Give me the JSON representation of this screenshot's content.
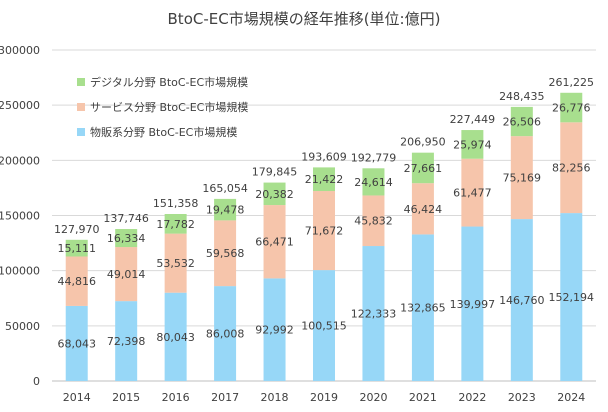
{
  "chart_data": {
    "type": "bar",
    "stacked": true,
    "title": "BtoC-EC市場規模の経年推移(単位:億円)",
    "xlabel": "",
    "ylabel": "",
    "categories": [
      "2014",
      "2015",
      "2016",
      "2017",
      "2018",
      "2019",
      "2020",
      "2021",
      "2022",
      "2023",
      "2024"
    ],
    "series": [
      {
        "name": "物販系分野 BtoC-EC市場規模",
        "color": "#97d7f7",
        "values": [
          68043,
          72398,
          80043,
          86008,
          92992,
          100515,
          122333,
          132865,
          139997,
          146760,
          152194
        ]
      },
      {
        "name": "サービス分野 BtoC-EC市場規模",
        "color": "#f6c5ab",
        "values": [
          44816,
          49014,
          53532,
          59568,
          66471,
          71672,
          45832,
          46424,
          61477,
          75169,
          82256
        ]
      },
      {
        "name": "デジタル分野 BtoC-EC市場規模",
        "color": "#a8df8e",
        "values": [
          15111,
          16334,
          17782,
          19478,
          20382,
          21422,
          24614,
          27661,
          25974,
          26506,
          26776
        ]
      }
    ],
    "totals": [
      127970,
      137746,
      151358,
      165054,
      179845,
      193609,
      192779,
      206950,
      227449,
      248435,
      261225
    ],
    "ylim": [
      0,
      300000
    ],
    "yticks": [
      0,
      50000,
      100000,
      150000,
      200000,
      250000,
      300000
    ],
    "grid": true,
    "legend_position": "top-left"
  }
}
